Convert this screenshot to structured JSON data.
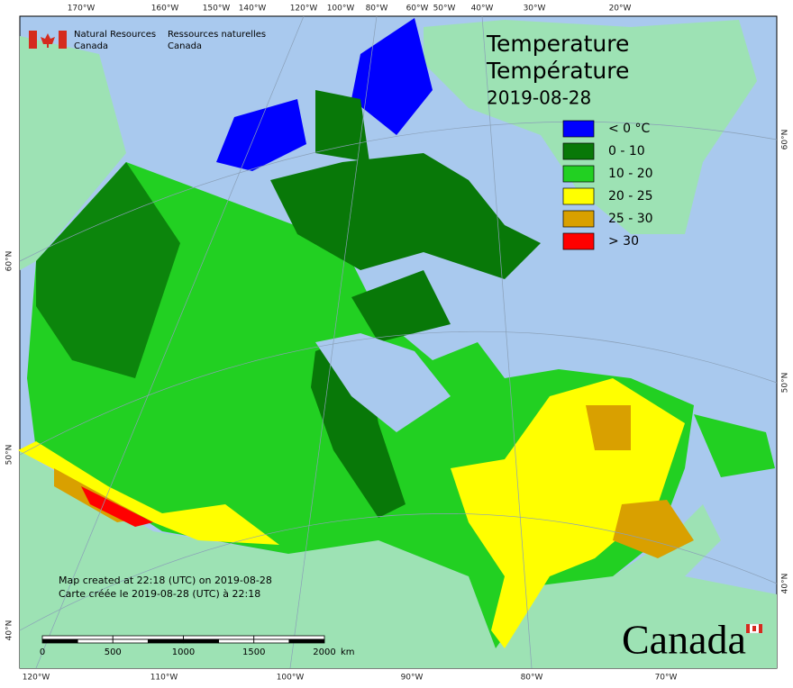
{
  "header": {
    "agency_en": "Natural Resources",
    "agency_en_2": "Canada",
    "agency_fr": "Ressources naturelles",
    "agency_fr_2": "Canada"
  },
  "title": {
    "en": "Temperature",
    "fr": "Température",
    "date": "2019-08-28"
  },
  "legend": [
    {
      "label": "< 0 °C",
      "color": "#0000ff"
    },
    {
      "label": "0 - 10",
      "color": "#087808"
    },
    {
      "label": "10 - 20",
      "color": "#22d022"
    },
    {
      "label": "20 - 25",
      "color": "#ffff00"
    },
    {
      "label": "25 - 30",
      "color": "#d9a000"
    },
    {
      "label": "> 30",
      "color": "#ff0000"
    }
  ],
  "graticule": {
    "top": [
      "170°W",
      "160°W",
      "150°W",
      "140°W",
      "120°W",
      "100°W",
      "80°W",
      "60°W",
      "50°W",
      "40°W",
      "30°W",
      "20°W"
    ],
    "bottom": [
      "120°W",
      "110°W",
      "100°W",
      "90°W",
      "80°W",
      "70°W"
    ],
    "left": [
      "60°N",
      "50°N",
      "40°N"
    ],
    "right": [
      "60°N",
      "50°N",
      "40°N"
    ]
  },
  "notes": [
    "Map created at 22:18 (UTC) on 2019-08-28",
    "Carte créée le 2019-08-28 (UTC) à 22:18"
  ],
  "scale_bar": {
    "labels": [
      "0",
      "500",
      "1000",
      "1500",
      "2000"
    ],
    "unit": "km"
  },
  "wordmark": "Canada"
}
